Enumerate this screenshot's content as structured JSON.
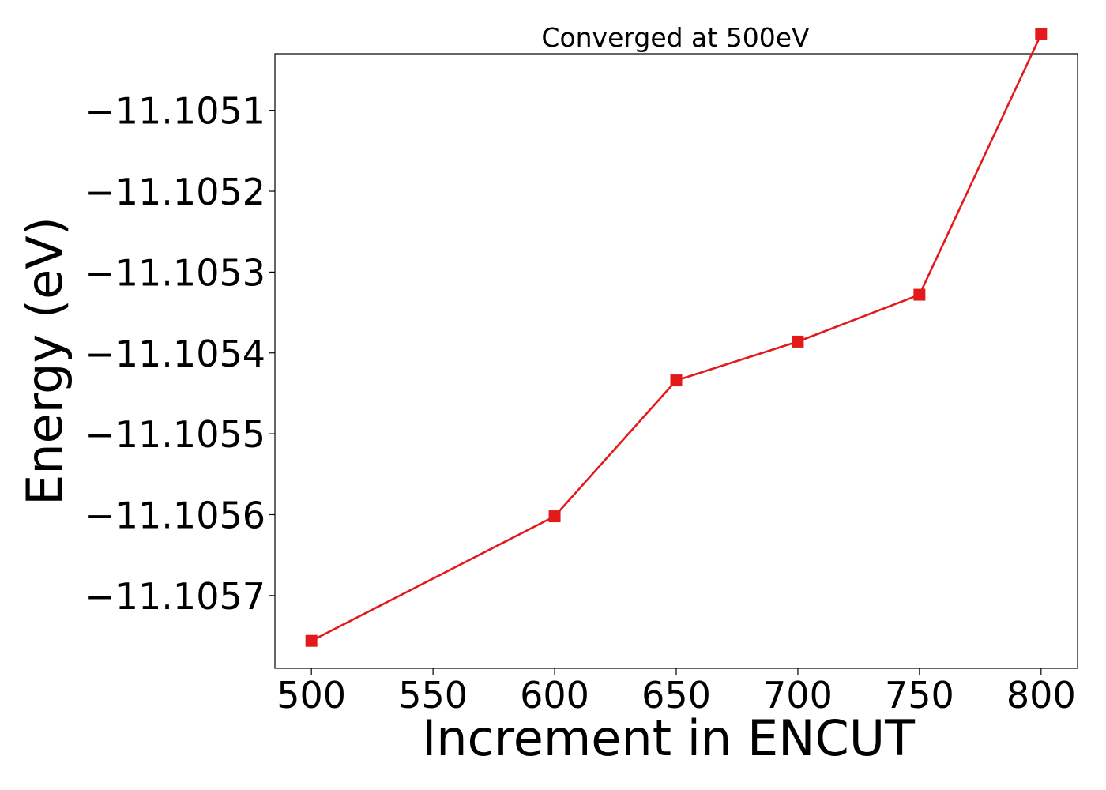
{
  "chart_data": {
    "type": "line",
    "title": "Converged at 500eV",
    "xlabel": "Increment in ENCUT",
    "ylabel": "Energy (eV)",
    "x": [
      500,
      600,
      650,
      700,
      750,
      800
    ],
    "series": [
      {
        "values": [
          -11.105756,
          -11.105602,
          -11.105434,
          -11.105386,
          -11.105328,
          -11.105006
        ]
      }
    ],
    "xticks": [
      500,
      550,
      600,
      650,
      700,
      750,
      800
    ],
    "xtick_labels": [
      "500",
      "550",
      "600",
      "650",
      "700",
      "750",
      "800"
    ],
    "yticks": [
      -11.1051,
      -11.1052,
      -11.1053,
      -11.1054,
      -11.1055,
      -11.1056,
      -11.1057
    ],
    "ytick_labels": [
      "−11.1051",
      "−11.1052",
      "−11.1053",
      "−11.1054",
      "−11.1055",
      "−11.1056",
      "−11.1057"
    ],
    "xlim": [
      485,
      815
    ],
    "ylim": [
      -11.10579,
      -11.10503
    ],
    "grid": false,
    "colors": {
      "line": "#e31a1c",
      "marker": "#e31a1c"
    },
    "marker": "square"
  }
}
